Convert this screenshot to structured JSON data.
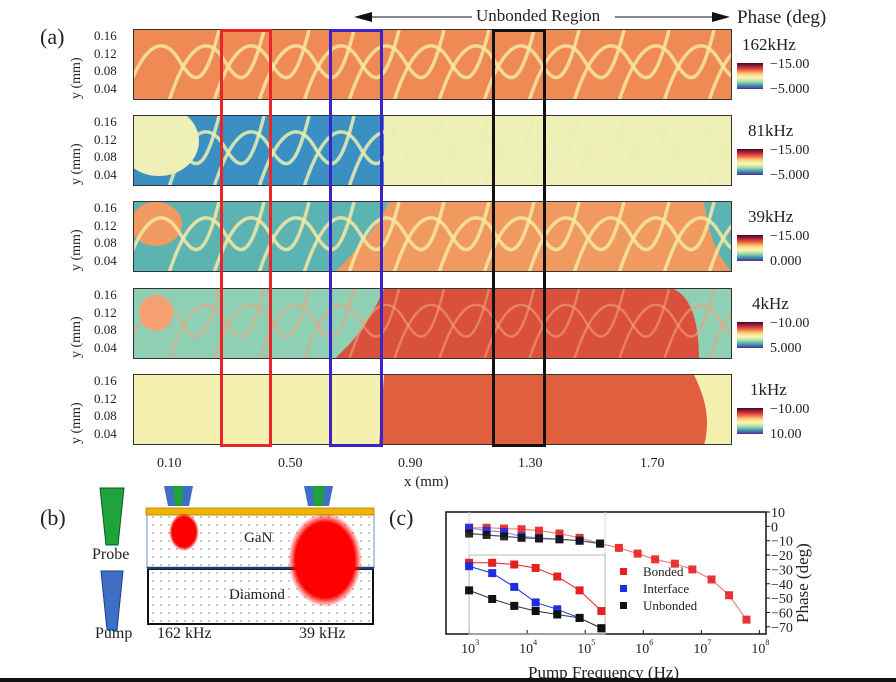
{
  "figure": {
    "panel_a": {
      "label": "(a)",
      "region_annotation": "Unbonded Region",
      "colorbar_title": "Phase (deg)",
      "y_axis_label": "y (mm)",
      "y_ticks": [
        "0.16",
        "0.12",
        "0.08",
        "0.04"
      ],
      "x_axis_label": "x (mm)",
      "x_ticks": [
        "0.10",
        "0.50",
        "0.90",
        "1.30",
        "1.70"
      ],
      "highlight_boxes": [
        {
          "name": "red-box",
          "color": "#e8252b"
        },
        {
          "name": "blue-box",
          "color": "#3b22c9"
        },
        {
          "name": "black-box",
          "color": "#111111"
        }
      ],
      "maps": [
        {
          "frequency": "162kHz",
          "cbar_top": "−15.00",
          "cbar_bottom": "−5.000",
          "theme": "orange"
        },
        {
          "frequency": "81kHz",
          "cbar_top": "−15.00",
          "cbar_bottom": "−5.000",
          "theme": "blue-mix"
        },
        {
          "frequency": "39kHz",
          "cbar_top": "−15.00",
          "cbar_bottom": "0.000",
          "theme": "teal-orange"
        },
        {
          "frequency": "4kHz",
          "cbar_top": "−10.00",
          "cbar_bottom": "5.000",
          "theme": "teal-red"
        },
        {
          "frequency": "1kHz",
          "cbar_top": "−10.00",
          "cbar_bottom": "10.00",
          "theme": "pale-red"
        }
      ]
    },
    "panel_b": {
      "label": "(b)",
      "probe_label": "Probe",
      "pump_label": "Pump",
      "layer_top": "GaN",
      "layer_bottom": "Diamond",
      "freq_left": "162 kHz",
      "freq_right": "39 kHz",
      "colors": {
        "probe": "#1fa33a",
        "pump": "#3e6fc4",
        "transducer": "#f0b400",
        "heat": "#ff0000"
      }
    },
    "panel_c": {
      "label": "(c)"
    }
  },
  "chart_data": {
    "type": "scatter",
    "title": "",
    "xlabel": "Pump Frequency  (Hz)",
    "ylabel": "Phase (deg)",
    "x_scale": "log",
    "xlim": [
      400,
      130000000
    ],
    "ylim": [
      -75,
      10
    ],
    "x_ticks": [
      {
        "v": 1000,
        "label": "10",
        "exp": "3"
      },
      {
        "v": 10000,
        "label": "10",
        "exp": "4"
      },
      {
        "v": 100000,
        "label": "10",
        "exp": "5"
      },
      {
        "v": 1000000,
        "label": "10",
        "exp": "6"
      },
      {
        "v": 10000000,
        "label": "10",
        "exp": "7"
      },
      {
        "v": 100000000,
        "label": "10",
        "exp": "8"
      }
    ],
    "y_ticks": [
      "10",
      "0",
      "−10",
      "−20",
      "−30",
      "−40",
      "−50",
      "−60",
      "−70"
    ],
    "y_tick_values": [
      10,
      0,
      -10,
      -20,
      -30,
      -40,
      -50,
      -60,
      -70
    ],
    "legend": {
      "placement": "center-right",
      "entries": [
        "Bonded",
        "Interface",
        "Unbonded"
      ]
    },
    "series": [
      {
        "name": "Bonded",
        "color": "#e62020",
        "line": "#f08080",
        "x": [
          1000,
          2000,
          4000,
          8000,
          16000,
          36000,
          80000,
          180000,
          380000,
          800000,
          1600000,
          3500000,
          7000000,
          15000000,
          30000000,
          60000000
        ],
        "y": [
          -1,
          -1,
          -1.5,
          -2,
          -3,
          -5,
          -8,
          -12,
          -15,
          -19,
          -23,
          -26,
          -30,
          -37,
          -48,
          -65
        ]
      },
      {
        "name": "Interface",
        "color": "#1f2ee0",
        "line": "#8a93e8",
        "x": [
          1000,
          2000,
          4000,
          8000,
          16000,
          36000,
          80000,
          180000
        ],
        "y": [
          -1,
          -3,
          -4,
          -7,
          -8,
          -9,
          -10,
          -12
        ]
      },
      {
        "name": "Unbonded",
        "color": "#111111",
        "line": "#555555",
        "x": [
          1000,
          2000,
          4000,
          8000,
          16000,
          36000,
          80000,
          180000
        ],
        "y": [
          -5,
          -6,
          -7,
          -8,
          -8.5,
          -9,
          -10,
          -12
        ]
      }
    ],
    "inset": {
      "xlim": [
        1000,
        220000
      ],
      "series": [
        {
          "name": "Bonded",
          "x": [
            1000,
            2500,
            6000,
            14000,
            33000,
            80000,
            190000
          ],
          "y": [
            -29,
            -29,
            -30,
            -32,
            -37,
            -45,
            -57
          ]
        },
        {
          "name": "Interface",
          "x": [
            1000,
            2500,
            6000,
            14000,
            33000,
            80000,
            190000
          ],
          "y": [
            -31,
            -35,
            -43,
            -52,
            -56,
            -61,
            -67
          ]
        },
        {
          "name": "Unbonded",
          "x": [
            1000,
            2500,
            6000,
            14000,
            33000,
            80000,
            190000
          ],
          "y": [
            -45,
            -50,
            -54,
            -57,
            -59,
            -61,
            -67
          ]
        }
      ]
    }
  }
}
